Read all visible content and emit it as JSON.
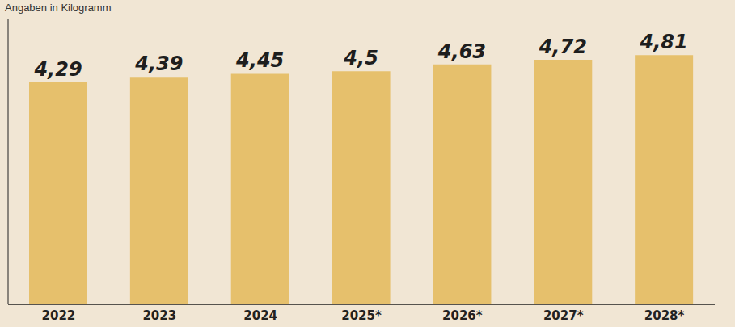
{
  "chart_data": {
    "type": "bar",
    "subtitle": "Angaben in Kilogramm",
    "categories": [
      "2022",
      "2023",
      "2024",
      "2025*",
      "2026*",
      "2027*",
      "2028*"
    ],
    "values": [
      4.29,
      4.39,
      4.45,
      4.5,
      4.63,
      4.72,
      4.81
    ],
    "value_labels": [
      "4,29",
      "4,39",
      "4,45",
      "4,5",
      "4,63",
      "4,72",
      "4,81"
    ],
    "color": "#e6c06c",
    "ylim": [
      0,
      5.5
    ],
    "grid": false,
    "data_labels": true,
    "tick_labels": "x"
  }
}
